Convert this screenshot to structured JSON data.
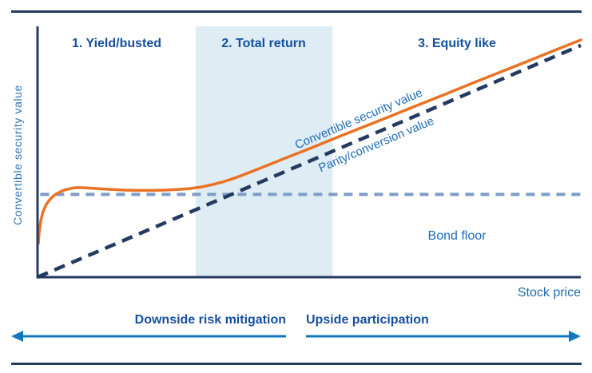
{
  "colors": {
    "navy": "#253a60",
    "royal_text": "#164f9e",
    "blue_text": "#1e6cb3",
    "arrow_blue": "#1278be",
    "orange": "#ea7224",
    "band": "#deecf4",
    "bond_floor_dash": "#7e9cc6"
  },
  "icons": {
    "downside_arrow": "left-arrow",
    "upside_arrow": "right-arrow"
  },
  "chart_data": {
    "type": "line",
    "title": "",
    "xlabel": "Stock price",
    "ylabel": "Convertible security value",
    "xlim": [
      0,
      100
    ],
    "ylim": [
      0,
      100
    ],
    "grid": false,
    "axes_ticks": "none",
    "regions": [
      {
        "label": "1. Yield/busted",
        "x_range": [
          0,
          29.1
        ],
        "shaded": false
      },
      {
        "label": "2. Total return",
        "x_range": [
          29.1,
          54.3
        ],
        "shaded": true,
        "shade_color": "#deecf4"
      },
      {
        "label": "3. Equity like",
        "x_range": [
          54.3,
          100
        ],
        "shaded": false
      }
    ],
    "series": [
      {
        "id": "convertible-security-value",
        "name": "Convertible security value",
        "style": "solid",
        "color": "#ea7224",
        "width": 3.5,
        "linecap": "round",
        "points": [
          [
            0.15,
            13.5
          ],
          [
            0.3,
            18
          ],
          [
            0.6,
            22.5
          ],
          [
            1.0,
            26
          ],
          [
            1.6,
            29
          ],
          [
            2.4,
            31.3
          ],
          [
            3.3,
            33
          ],
          [
            4.5,
            34.4
          ],
          [
            5.2,
            34.9
          ],
          [
            6,
            35.3
          ],
          [
            6.7,
            35.6
          ],
          [
            7.5,
            35.7
          ],
          [
            9,
            35.6
          ],
          [
            11,
            35.3
          ],
          [
            13.5,
            35.0
          ],
          [
            16,
            34.7
          ],
          [
            18.5,
            34.6
          ],
          [
            21,
            34.6
          ],
          [
            23.5,
            34.7
          ],
          [
            26,
            35.0
          ],
          [
            28,
            35.3
          ],
          [
            30,
            35.9
          ],
          [
            32,
            36.8
          ],
          [
            34,
            37.9
          ],
          [
            36,
            39.3
          ],
          [
            38,
            40.9
          ],
          [
            40,
            42.6
          ],
          [
            43,
            45.2
          ],
          [
            46,
            47.8
          ],
          [
            50,
            51.2
          ],
          [
            55,
            55.6
          ],
          [
            60,
            59.9
          ],
          [
            65,
            64.2
          ],
          [
            70,
            68.6
          ],
          [
            75,
            72.9
          ],
          [
            80,
            77.3
          ],
          [
            85,
            81.6
          ],
          [
            90,
            85.9
          ],
          [
            95,
            90.3
          ],
          [
            100,
            94.6
          ]
        ]
      },
      {
        "id": "parity-conversion-value",
        "name": "Parity/conversion value",
        "style": "dashed",
        "color": "#253a60",
        "width": 4.5,
        "dash": "14 9",
        "points": [
          [
            0,
            0
          ],
          [
            100,
            92.4
          ]
        ]
      },
      {
        "id": "bond-floor",
        "name": "Bond floor",
        "style": "dashed",
        "color": "#7e9cc6",
        "width": 4,
        "dash": "11 8",
        "points": [
          [
            0.5,
            33
          ],
          [
            100,
            33
          ]
        ]
      }
    ],
    "footer": {
      "downside_label": "Downside risk mitigation",
      "upside_label": "Upside participation"
    },
    "legend_position": "inline-rotated-labels"
  }
}
